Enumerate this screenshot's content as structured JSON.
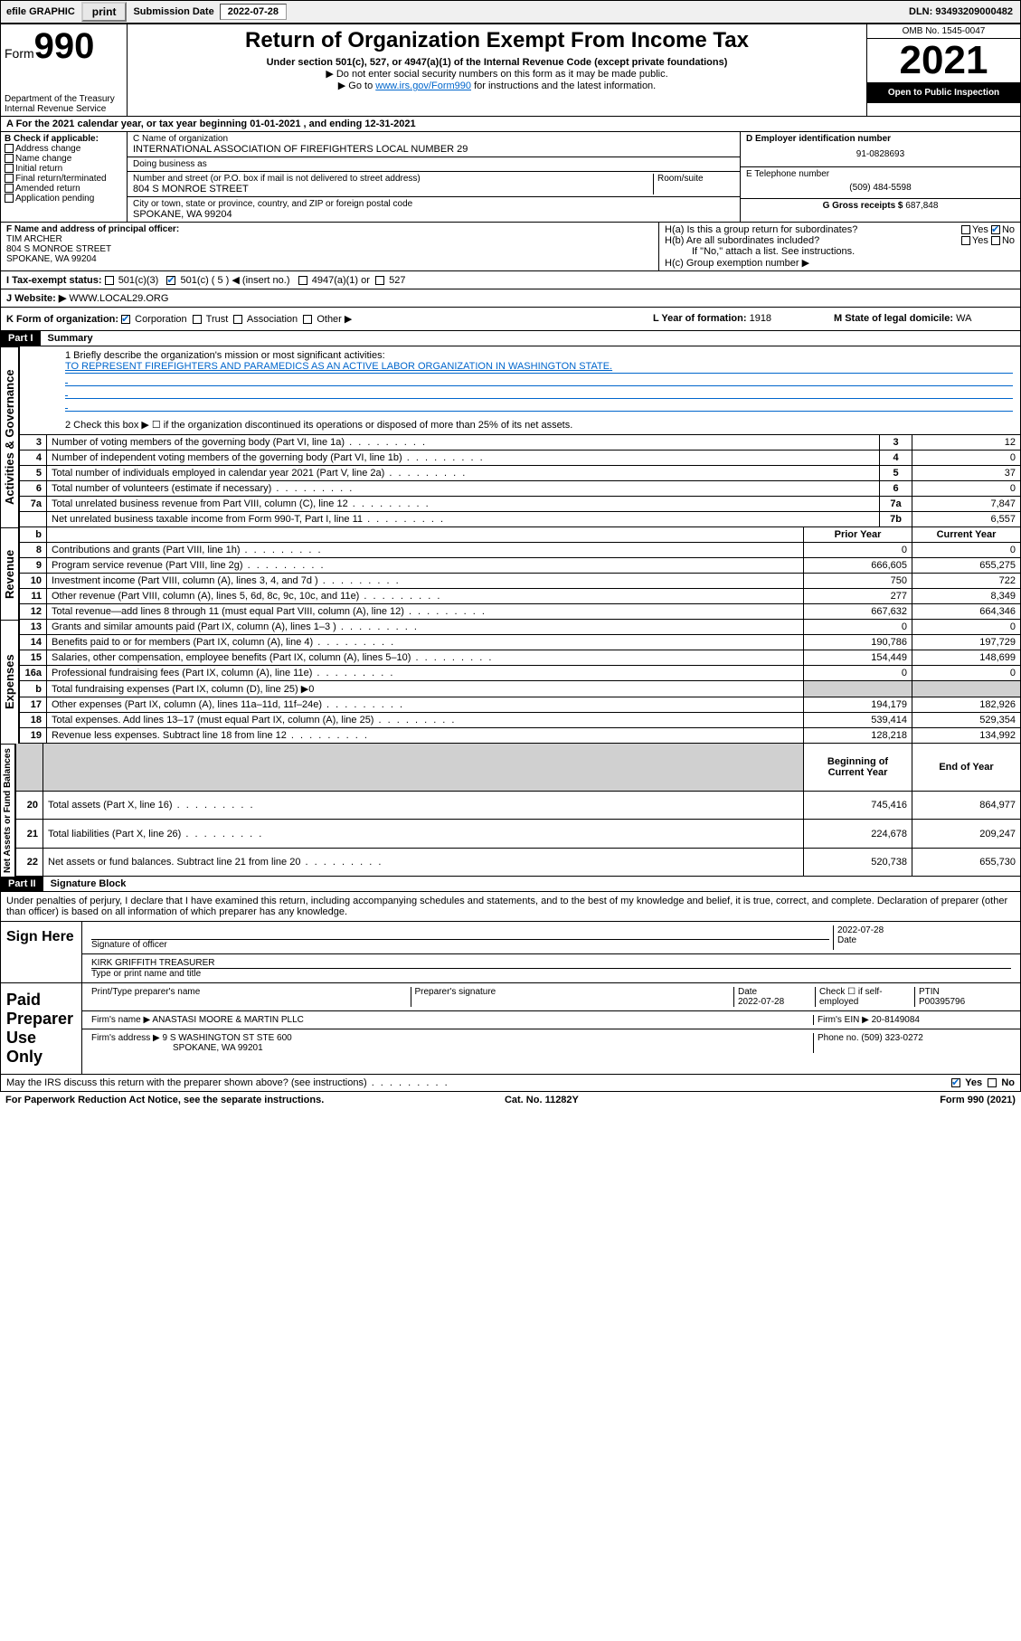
{
  "topbar": {
    "efile": "efile GRAPHIC",
    "print": "print",
    "subLabel": "Submission Date",
    "subDate": "2022-07-28",
    "dln": "DLN: 93493209000482"
  },
  "header": {
    "formPrefix": "Form",
    "formNum": "990",
    "title": "Return of Organization Exempt From Income Tax",
    "sub": "Under section 501(c), 527, or 4947(a)(1) of the Internal Revenue Code (except private foundations)",
    "note1": "▶ Do not enter social security numbers on this form as it may be made public.",
    "note2pre": "▶ Go to ",
    "note2link": "www.irs.gov/Form990",
    "note2post": " for instructions and the latest information.",
    "dept": "Department of the Treasury\nInternal Revenue Service",
    "omb": "OMB No. 1545-0047",
    "year": "2021",
    "inspect": "Open to Public Inspection"
  },
  "rowA": "A For the 2021 calendar year, or tax year beginning 01-01-2021   , and ending 12-31-2021",
  "colB": {
    "hdr": "B Check if applicable:",
    "opts": [
      "Address change",
      "Name change",
      "Initial return",
      "Final return/terminated",
      "Amended return",
      "Application pending"
    ]
  },
  "colC": {
    "nameLbl": "C Name of organization",
    "name": "INTERNATIONAL ASSOCIATION OF FIREFIGHTERS LOCAL NUMBER 29",
    "dba": "Doing business as",
    "addrLbl": "Number and street (or P.O. box if mail is not delivered to street address)",
    "addr": "804 S MONROE STREET",
    "roomLbl": "Room/suite",
    "cityLbl": "City or town, state or province, country, and ZIP or foreign postal code",
    "city": "SPOKANE, WA  99204"
  },
  "colDE": {
    "einLbl": "D Employer identification number",
    "ein": "91-0828693",
    "telLbl": "E Telephone number",
    "tel": "(509) 484-5598",
    "grossLbl": "G Gross receipts $",
    "gross": "687,848"
  },
  "rowF": {
    "lbl": "F Name and address of principal officer:",
    "name": "TIM ARCHER",
    "addr1": "804 S MONROE STREET",
    "addr2": "SPOKANE, WA  99204"
  },
  "rowH": {
    "ha": "H(a)  Is this a group return for subordinates?",
    "haAns": "No",
    "hb": "H(b)  Are all subordinates included?",
    "hbNote": "If \"No,\" attach a list. See instructions.",
    "hc": "H(c)  Group exemption number ▶"
  },
  "rowI": {
    "lbl": "I    Tax-exempt status:",
    "opt1": "501(c)(3)",
    "opt2": "501(c) ( 5 ) ◀ (insert no.)",
    "opt3": "4947(a)(1) or",
    "opt4": "527"
  },
  "rowJ": {
    "lbl": "J    Website: ▶",
    "val": "WWW.LOCAL29.ORG"
  },
  "rowK": {
    "lbl": "K Form of organization:",
    "opts": [
      "Corporation",
      "Trust",
      "Association",
      "Other ▶"
    ]
  },
  "rowL": {
    "lbl": "L Year of formation:",
    "val": "1918"
  },
  "rowM": {
    "lbl": "M State of legal domicile:",
    "val": "WA"
  },
  "part1": {
    "hdr": "Part I",
    "title": "Summary",
    "q1lbl": "1   Briefly describe the organization's mission or most significant activities:",
    "q1val": "TO REPRESENT FIREFIGHTERS AND PARAMEDICS AS AN ACTIVE LABOR ORGANIZATION IN WASHINGTON STATE.",
    "q2": "2    Check this box ▶ ☐  if the organization discontinued its operations or disposed of more than 25% of its net assets."
  },
  "sideLabels": {
    "gov": "Activities & Governance",
    "rev": "Revenue",
    "exp": "Expenses",
    "net": "Net Assets or Fund Balances"
  },
  "govRows": [
    {
      "n": "3",
      "t": "Number of voting members of the governing body (Part VI, line 1a)",
      "ln": "3",
      "v": "12"
    },
    {
      "n": "4",
      "t": "Number of independent voting members of the governing body (Part VI, line 1b)",
      "ln": "4",
      "v": "0"
    },
    {
      "n": "5",
      "t": "Total number of individuals employed in calendar year 2021 (Part V, line 2a)",
      "ln": "5",
      "v": "37"
    },
    {
      "n": "6",
      "t": "Total number of volunteers (estimate if necessary)",
      "ln": "6",
      "v": "0"
    },
    {
      "n": "7a",
      "t": "Total unrelated business revenue from Part VIII, column (C), line 12",
      "ln": "7a",
      "v": "7,847"
    },
    {
      "n": "",
      "t": "Net unrelated business taxable income from Form 990-T, Part I, line 11",
      "ln": "7b",
      "v": "6,557"
    }
  ],
  "twoColHdr": {
    "b": "b",
    "prior": "Prior Year",
    "cur": "Current Year"
  },
  "revRows": [
    {
      "n": "8",
      "t": "Contributions and grants (Part VIII, line 1h)",
      "p": "0",
      "c": "0"
    },
    {
      "n": "9",
      "t": "Program service revenue (Part VIII, line 2g)",
      "p": "666,605",
      "c": "655,275"
    },
    {
      "n": "10",
      "t": "Investment income (Part VIII, column (A), lines 3, 4, and 7d )",
      "p": "750",
      "c": "722"
    },
    {
      "n": "11",
      "t": "Other revenue (Part VIII, column (A), lines 5, 6d, 8c, 9c, 10c, and 11e)",
      "p": "277",
      "c": "8,349"
    },
    {
      "n": "12",
      "t": "Total revenue—add lines 8 through 11 (must equal Part VIII, column (A), line 12)",
      "p": "667,632",
      "c": "664,346"
    }
  ],
  "expRows": [
    {
      "n": "13",
      "t": "Grants and similar amounts paid (Part IX, column (A), lines 1–3 )",
      "p": "0",
      "c": "0"
    },
    {
      "n": "14",
      "t": "Benefits paid to or for members (Part IX, column (A), line 4)",
      "p": "190,786",
      "c": "197,729"
    },
    {
      "n": "15",
      "t": "Salaries, other compensation, employee benefits (Part IX, column (A), lines 5–10)",
      "p": "154,449",
      "c": "148,699"
    },
    {
      "n": "16a",
      "t": "Professional fundraising fees (Part IX, column (A), line 11e)",
      "p": "0",
      "c": "0"
    },
    {
      "n": "b",
      "t": "Total fundraising expenses (Part IX, column (D), line 25) ▶0",
      "shade": true
    },
    {
      "n": "17",
      "t": "Other expenses (Part IX, column (A), lines 11a–11d, 11f–24e)",
      "p": "194,179",
      "c": "182,926"
    },
    {
      "n": "18",
      "t": "Total expenses. Add lines 13–17 (must equal Part IX, column (A), line 25)",
      "p": "539,414",
      "c": "529,354"
    },
    {
      "n": "19",
      "t": "Revenue less expenses. Subtract line 18 from line 12",
      "p": "128,218",
      "c": "134,992"
    }
  ],
  "netHdr": {
    "beg": "Beginning of Current Year",
    "end": "End of Year"
  },
  "netRows": [
    {
      "n": "20",
      "t": "Total assets (Part X, line 16)",
      "p": "745,416",
      "c": "864,977"
    },
    {
      "n": "21",
      "t": "Total liabilities (Part X, line 26)",
      "p": "224,678",
      "c": "209,247"
    },
    {
      "n": "22",
      "t": "Net assets or fund balances. Subtract line 21 from line 20",
      "p": "520,738",
      "c": "655,730"
    }
  ],
  "part2": {
    "hdr": "Part II",
    "title": "Signature Block",
    "decl": "Under penalties of perjury, I declare that I have examined this return, including accompanying schedules and statements, and to the best of my knowledge and belief, it is true, correct, and complete. Declaration of preparer (other than officer) is based on all information of which preparer has any knowledge."
  },
  "sign": {
    "hereLbl": "Sign Here",
    "sigLbl": "Signature of officer",
    "dateLbl": "Date",
    "date": "2022-07-28",
    "name": "KIRK GRIFFITH  TREASURER",
    "nameLbl": "Type or print name and title"
  },
  "prep": {
    "lbl": "Paid Preparer Use Only",
    "c1": "Print/Type preparer's name",
    "c2": "Preparer's signature",
    "c3": "Date",
    "c3v": "2022-07-28",
    "c4": "Check ☐ if self-employed",
    "c5": "PTIN",
    "c5v": "P00395796",
    "firmLbl": "Firm's name    ▶",
    "firm": "ANASTASI MOORE & MARTIN PLLC",
    "einLbl": "Firm's EIN ▶",
    "ein": "20-8149084",
    "addrLbl": "Firm's address ▶",
    "addr1": "9 S WASHINGTON ST STE 600",
    "addr2": "SPOKANE, WA  99201",
    "phLbl": "Phone no.",
    "ph": "(509) 323-0272"
  },
  "may": {
    "q": "May the IRS discuss this return with the preparer shown above? (see instructions)",
    "yes": "Yes",
    "no": "No"
  },
  "footer": {
    "l": "For Paperwork Reduction Act Notice, see the separate instructions.",
    "m": "Cat. No. 11282Y",
    "r": "Form 990 (2021)"
  }
}
